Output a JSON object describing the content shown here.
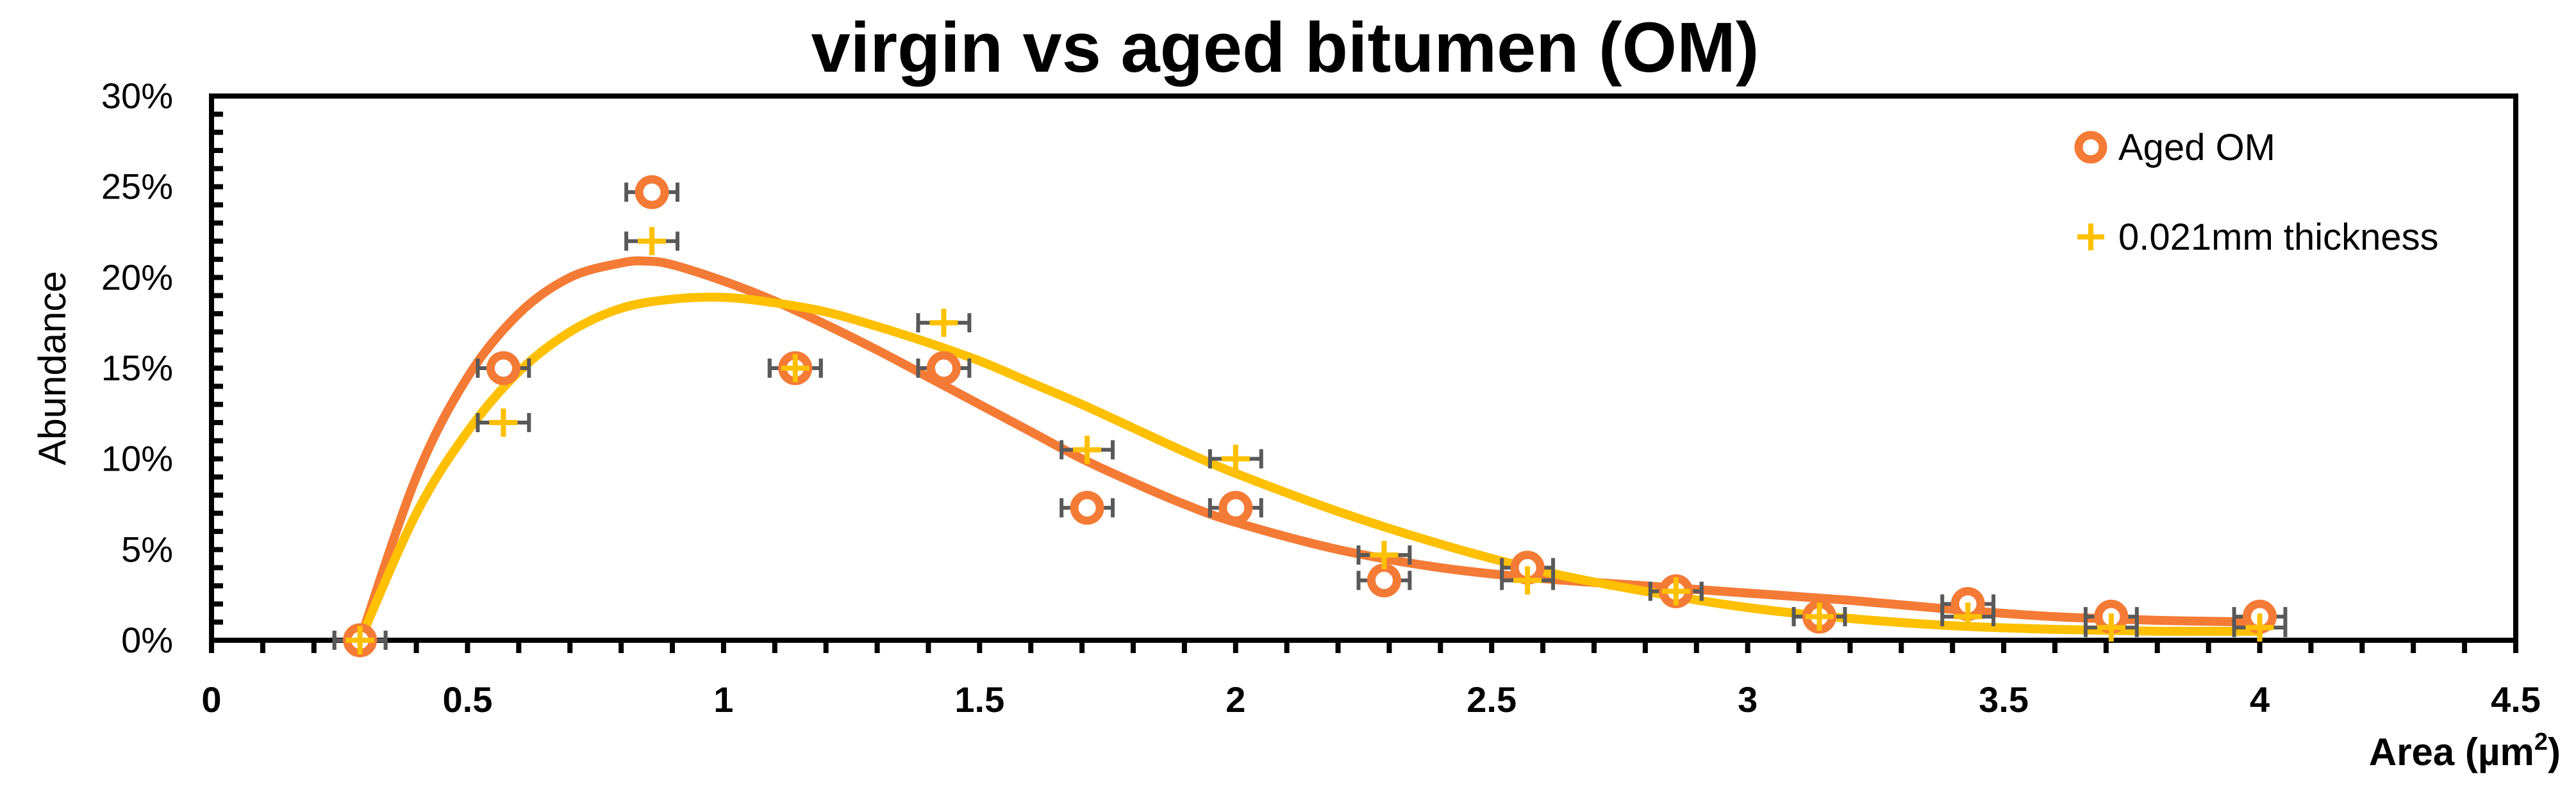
{
  "chart_data": {
    "type": "scatter",
    "title": "virgin vs aged bitumen (OM)",
    "xlabel": "Area (µm",
    "xlabel_sup": "2",
    "xlabel_close": ")",
    "ylabel": "Abundance",
    "xlim": [
      0,
      4.5
    ],
    "ylim": [
      0,
      0.3
    ],
    "x_ticks": [
      "0",
      "0.5",
      "1",
      "1.5",
      "2",
      "2.5",
      "3",
      "3.5",
      "4",
      "4.5"
    ],
    "x_tick_values": [
      0,
      0.5,
      1,
      1.5,
      2,
      2.5,
      3,
      3.5,
      4,
      4.5
    ],
    "y_ticks": [
      "0%",
      "5%",
      "10%",
      "15%",
      "20%",
      "25%",
      "30%"
    ],
    "y_tick_values": [
      0,
      0.05,
      0.1,
      0.15,
      0.2,
      0.25,
      0.3
    ],
    "legend_position": "top-right",
    "series": [
      {
        "name": "Aged OM",
        "marker": "circle",
        "color": "#F47B36",
        "x": [
          0.29,
          0.57,
          0.86,
          1.14,
          1.43,
          1.71,
          2.0,
          2.29,
          2.57,
          2.86,
          3.14,
          3.43,
          3.71,
          4.0
        ],
        "y": [
          0.0,
          0.15,
          0.247,
          0.15,
          0.15,
          0.073,
          0.073,
          0.033,
          0.04,
          0.027,
          0.013,
          0.02,
          0.013,
          0.013
        ],
        "x_err": 0.05,
        "trend_x": [
          0.29,
          0.4,
          0.5,
          0.6,
          0.7,
          0.8,
          0.85,
          0.9,
          1.0,
          1.1,
          1.2,
          1.3,
          1.4,
          1.5,
          1.6,
          1.7,
          1.8,
          1.9,
          2.0,
          2.2,
          2.4,
          2.6,
          2.8,
          3.0,
          3.2,
          3.4,
          3.6,
          3.8,
          4.0
        ],
        "trend_y": [
          0.0,
          0.09,
          0.145,
          0.18,
          0.2,
          0.208,
          0.209,
          0.207,
          0.198,
          0.187,
          0.174,
          0.16,
          0.145,
          0.13,
          0.115,
          0.1,
          0.087,
          0.075,
          0.065,
          0.05,
          0.04,
          0.034,
          0.03,
          0.026,
          0.022,
          0.017,
          0.013,
          0.011,
          0.01
        ]
      },
      {
        "name": "0.021mm thickness",
        "marker": "plus",
        "color": "#FFC000",
        "x": [
          0.29,
          0.57,
          0.86,
          1.14,
          1.43,
          1.71,
          2.0,
          2.29,
          2.57,
          2.86,
          3.14,
          3.43,
          3.71,
          4.0
        ],
        "y": [
          0.0,
          0.12,
          0.22,
          0.15,
          0.175,
          0.105,
          0.1,
          0.047,
          0.033,
          0.027,
          0.013,
          0.013,
          0.007,
          0.007
        ],
        "x_err": 0.05,
        "trend_x": [
          0.29,
          0.4,
          0.5,
          0.6,
          0.7,
          0.8,
          0.9,
          1.0,
          1.1,
          1.2,
          1.3,
          1.4,
          1.5,
          1.6,
          1.7,
          1.8,
          1.9,
          2.0,
          2.2,
          2.4,
          2.6,
          2.8,
          3.0,
          3.2,
          3.4,
          3.6,
          3.8,
          4.0
        ],
        "trend_y": [
          0.0,
          0.07,
          0.115,
          0.148,
          0.17,
          0.183,
          0.188,
          0.189,
          0.186,
          0.181,
          0.173,
          0.164,
          0.154,
          0.142,
          0.13,
          0.117,
          0.104,
          0.092,
          0.071,
          0.053,
          0.038,
          0.027,
          0.018,
          0.012,
          0.008,
          0.006,
          0.005,
          0.005
        ]
      }
    ]
  }
}
